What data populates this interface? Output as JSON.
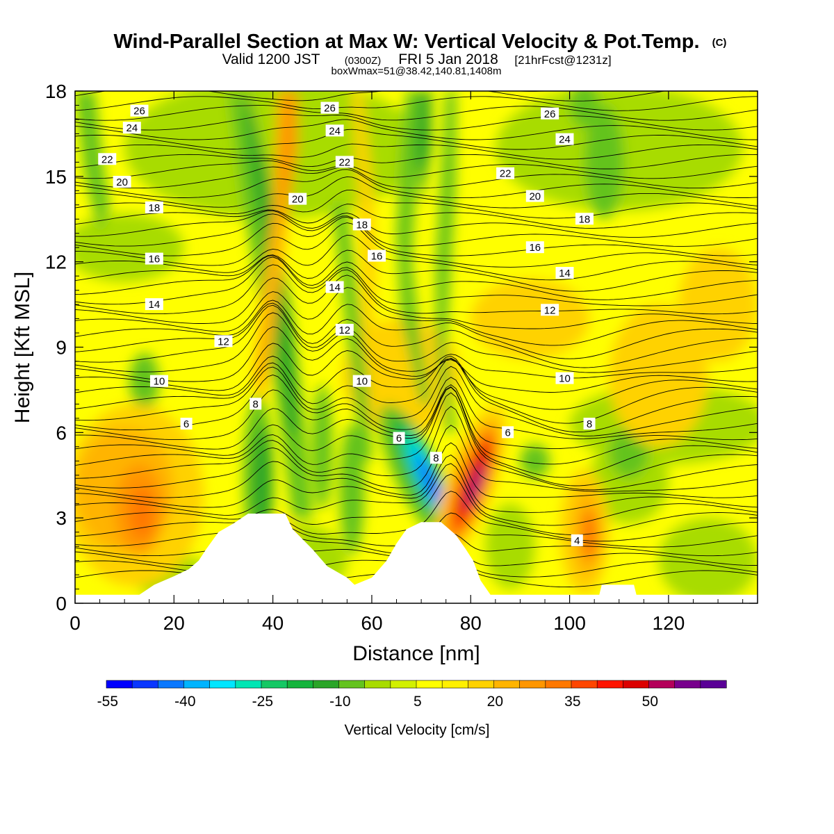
{
  "header": {
    "title": "Wind-Parallel Section at Max W: Vertical Velocity & Pot.Temp.",
    "copyright": "(C)",
    "valid_prefix": "Valid 1200 JST",
    "valid_utc": "(0300Z)",
    "valid_date": "FRI 5 Jan 2018",
    "forecast": "[21hrFcst@1231z]",
    "boxwmax": "boxWmax=51@38.42,140.81,1408m"
  },
  "chart_data": {
    "type": "heatmap",
    "xlabel": "Distance [nm]",
    "ylabel": "Height [Kft MSL]",
    "xlim": [
      0,
      138
    ],
    "ylim": [
      0,
      18
    ],
    "x_ticks": [
      0,
      20,
      40,
      60,
      80,
      100,
      120
    ],
    "y_ticks": [
      0,
      3,
      6,
      9,
      12,
      15,
      18
    ],
    "colorbar": {
      "label": "Vertical Velocity [cm/s]",
      "levels": [
        -55,
        -50,
        -45,
        -40,
        -35,
        -30,
        -25,
        -20,
        -15,
        -10,
        -5,
        0,
        5,
        10,
        15,
        20,
        25,
        30,
        35,
        40,
        45,
        50,
        55
      ],
      "tick_labels": [
        "-55",
        "-40",
        "-25",
        "-10",
        "5",
        "20",
        "35",
        "50"
      ],
      "colors": [
        "#0000ff",
        "#0a37ff",
        "#0a78ff",
        "#00b4ff",
        "#00e6ff",
        "#00e6b4",
        "#14c864",
        "#14b43c",
        "#2aa528",
        "#64c31e",
        "#a8dc00",
        "#d2f000",
        "#ffff00",
        "#fff000",
        "#ffd200",
        "#ffb400",
        "#ff9600",
        "#ff7800",
        "#ff4600",
        "#ff1400",
        "#dc0000",
        "#b4005a",
        "#78008c",
        "#5a0096"
      ]
    },
    "theta_contour_labels": [
      {
        "text": "26",
        "x": 13,
        "z": 17.3
      },
      {
        "text": "24",
        "x": 11.5,
        "z": 16.7
      },
      {
        "text": "22",
        "x": 6.5,
        "z": 15.6
      },
      {
        "text": "20",
        "x": 9.5,
        "z": 14.8
      },
      {
        "text": "18",
        "x": 16,
        "z": 13.9
      },
      {
        "text": "16",
        "x": 16,
        "z": 12.1
      },
      {
        "text": "14",
        "x": 16,
        "z": 10.5
      },
      {
        "text": "12",
        "x": 30,
        "z": 9.2
      },
      {
        "text": "10",
        "x": 17,
        "z": 7.8
      },
      {
        "text": "8",
        "x": 36.5,
        "z": 7.0
      },
      {
        "text": "6",
        "x": 22.5,
        "z": 6.3
      },
      {
        "text": "26",
        "x": 51.5,
        "z": 17.4
      },
      {
        "text": "24",
        "x": 52.5,
        "z": 16.6
      },
      {
        "text": "22",
        "x": 54.5,
        "z": 15.5
      },
      {
        "text": "20",
        "x": 45,
        "z": 14.2
      },
      {
        "text": "18",
        "x": 58,
        "z": 13.3
      },
      {
        "text": "16",
        "x": 61,
        "z": 12.2
      },
      {
        "text": "14",
        "x": 52.5,
        "z": 11.1
      },
      {
        "text": "12",
        "x": 54.5,
        "z": 9.6
      },
      {
        "text": "10",
        "x": 58,
        "z": 7.8
      },
      {
        "text": "6",
        "x": 65.5,
        "z": 5.8
      },
      {
        "text": "8",
        "x": 73,
        "z": 5.1
      },
      {
        "text": "22",
        "x": 87,
        "z": 15.1
      },
      {
        "text": "20",
        "x": 93,
        "z": 14.3
      },
      {
        "text": "26",
        "x": 96,
        "z": 17.2
      },
      {
        "text": "24",
        "x": 99,
        "z": 16.3
      },
      {
        "text": "18",
        "x": 103,
        "z": 13.5
      },
      {
        "text": "16",
        "x": 93,
        "z": 12.5
      },
      {
        "text": "14",
        "x": 99,
        "z": 11.6
      },
      {
        "text": "12",
        "x": 96,
        "z": 10.3
      },
      {
        "text": "10",
        "x": 99,
        "z": 7.9
      },
      {
        "text": "8",
        "x": 104,
        "z": 6.3
      },
      {
        "text": "6",
        "x": 87.5,
        "z": 6.0
      },
      {
        "text": "4",
        "x": 101.5,
        "z": 2.2
      }
    ],
    "terrain_profile": [
      [
        0,
        0.3
      ],
      [
        13,
        0.3
      ],
      [
        16,
        0.65
      ],
      [
        20,
        0.95
      ],
      [
        23,
        1.2
      ],
      [
        25,
        1.5
      ],
      [
        26.5,
        1.9
      ],
      [
        29,
        2.5
      ],
      [
        32,
        2.8
      ],
      [
        35,
        3.15
      ],
      [
        37,
        3.15
      ],
      [
        42.5,
        3.15
      ],
      [
        44,
        2.6
      ],
      [
        48,
        1.9
      ],
      [
        51,
        1.3
      ],
      [
        55,
        0.9
      ],
      [
        56.5,
        0.65
      ],
      [
        60,
        0.9
      ],
      [
        63,
        1.5
      ],
      [
        65,
        2.1
      ],
      [
        67,
        2.6
      ],
      [
        70,
        2.85
      ],
      [
        74,
        2.85
      ],
      [
        77,
        2.4
      ],
      [
        79,
        1.9
      ],
      [
        80.5,
        1.5
      ],
      [
        82,
        0.8
      ],
      [
        84,
        0.3
      ],
      [
        106,
        0.3
      ],
      [
        106.5,
        0.65
      ],
      [
        113,
        0.65
      ],
      [
        113.5,
        0.3
      ],
      [
        138,
        0.3
      ]
    ]
  }
}
